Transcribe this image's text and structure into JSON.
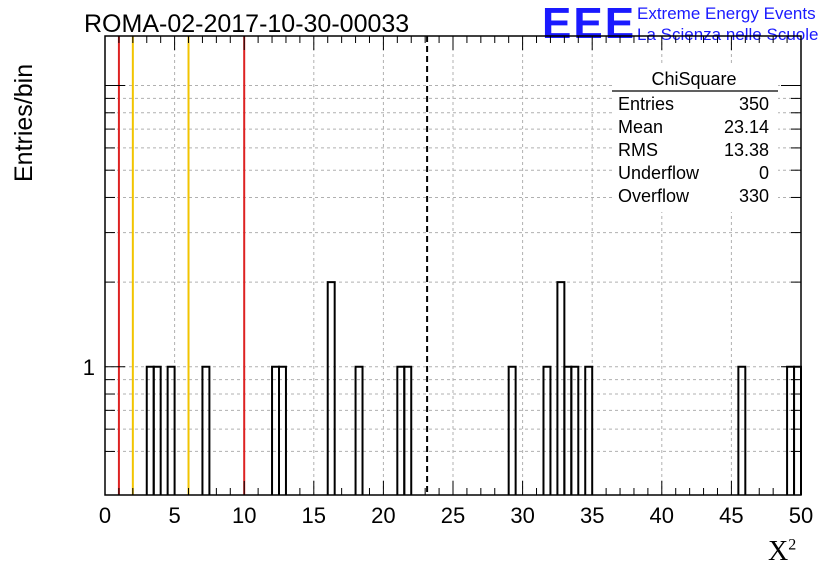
{
  "header": {
    "run_title": "ROMA-02-2017-10-30-00033",
    "logo_mark": "EEE",
    "logo_line1": "Extreme Energy Events",
    "logo_line2": "La Scienza nelle Scuole"
  },
  "chart_data": {
    "type": "bar",
    "histogram": true,
    "xlabel": "X",
    "xlabel_superscript": "2",
    "ylabel": "Entries/bin",
    "xlim": [
      0,
      50
    ],
    "x_ticks": [
      0,
      5,
      10,
      15,
      20,
      25,
      30,
      35,
      40,
      45,
      50
    ],
    "y_scale": "log",
    "ylim": [
      0.35,
      15
    ],
    "y_tick_labels": [
      "1"
    ],
    "grid": true,
    "bin_width": 0.5,
    "bins": [
      {
        "x": 3.0,
        "y": 1
      },
      {
        "x": 3.5,
        "y": 1
      },
      {
        "x": 4.5,
        "y": 1
      },
      {
        "x": 7.0,
        "y": 1
      },
      {
        "x": 12.0,
        "y": 1
      },
      {
        "x": 12.5,
        "y": 1
      },
      {
        "x": 16.0,
        "y": 2
      },
      {
        "x": 18.0,
        "y": 1
      },
      {
        "x": 21.0,
        "y": 1
      },
      {
        "x": 21.5,
        "y": 1
      },
      {
        "x": 29.0,
        "y": 1
      },
      {
        "x": 31.5,
        "y": 1
      },
      {
        "x": 32.5,
        "y": 2
      },
      {
        "x": 33.0,
        "y": 1
      },
      {
        "x": 33.5,
        "y": 1
      },
      {
        "x": 34.5,
        "y": 1
      },
      {
        "x": 45.5,
        "y": 1
      },
      {
        "x": 49.0,
        "y": 1
      },
      {
        "x": 49.5,
        "y": 1
      }
    ],
    "vertical_lines": [
      {
        "x": 1,
        "color": "#dd2222",
        "style": "solid"
      },
      {
        "x": 2,
        "color": "#f2c400",
        "style": "solid"
      },
      {
        "x": 6,
        "color": "#f2c400",
        "style": "solid"
      },
      {
        "x": 10,
        "color": "#dd2222",
        "style": "solid"
      },
      {
        "x": 23.14,
        "color": "#000000",
        "style": "dashed"
      }
    ],
    "legend_placement": "top-right",
    "stats": {
      "title": "ChiSquare",
      "rows": [
        {
          "label": "Entries",
          "value": "350"
        },
        {
          "label": "Mean",
          "value": "23.14"
        },
        {
          "label": "RMS",
          "value": "13.38"
        },
        {
          "label": "Underflow",
          "value": "0"
        },
        {
          "label": "Overflow",
          "value": "330"
        }
      ]
    }
  }
}
